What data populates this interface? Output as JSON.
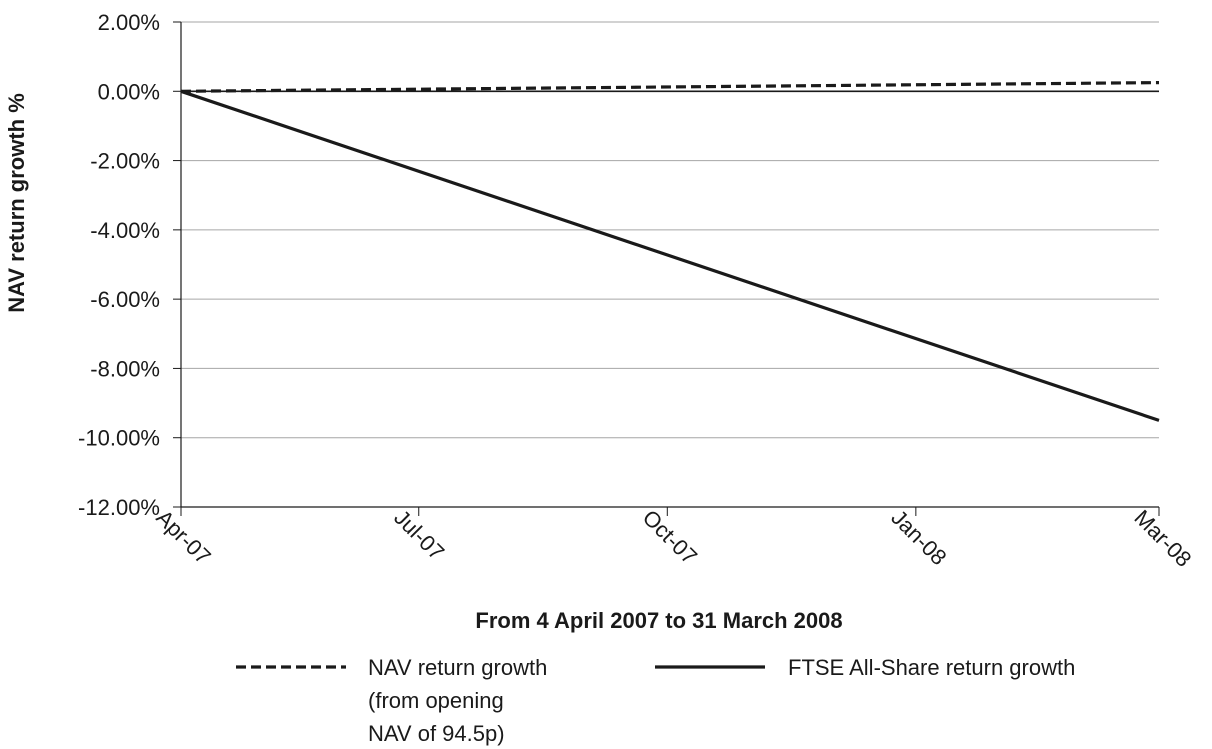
{
  "chart_data": {
    "type": "line",
    "xlabel": "From 4 April 2007 to 31 March 2008",
    "ylabel": "NAV return growth %",
    "x_tick_labels": [
      "Apr-07",
      "Jul-07",
      "Oct-07",
      "Jan-08",
      "Mar-08"
    ],
    "x_range": [
      "2007-04-04",
      "2008-03-31"
    ],
    "x_ticks": [
      "2007-04-04",
      "2007-07-01",
      "2007-10-01",
      "2008-01-01",
      "2008-03-31"
    ],
    "y_tick_labels": [
      "2.00%",
      "0.00%",
      "-2.00%",
      "-4.00%",
      "-6.00%",
      "-8.00%",
      "-10.00%",
      "-12.00%"
    ],
    "ylim": [
      -12,
      2
    ],
    "y_ticks": [
      2,
      0,
      -2,
      -4,
      -6,
      -8,
      -10,
      -12
    ],
    "grid": "horizontal",
    "legend_position": "bottom",
    "series": [
      {
        "name": "NAV return growth (from opening NAV of 94.5p)",
        "legend_lines": [
          "NAV return growth",
          "(from opening",
          "NAV of 94.5p)"
        ],
        "style": "dashed",
        "color": "#1a1a1a",
        "points": [
          {
            "x": "2007-04-04",
            "y": 0.0
          },
          {
            "x": "2008-03-31",
            "y": 0.25
          }
        ]
      },
      {
        "name": "FTSE All-Share return growth",
        "legend_lines": [
          "FTSE All-Share return growth"
        ],
        "style": "solid",
        "color": "#1a1a1a",
        "points": [
          {
            "x": "2007-04-04",
            "y": 0.0
          },
          {
            "x": "2008-03-31",
            "y": -9.5
          }
        ]
      }
    ]
  }
}
